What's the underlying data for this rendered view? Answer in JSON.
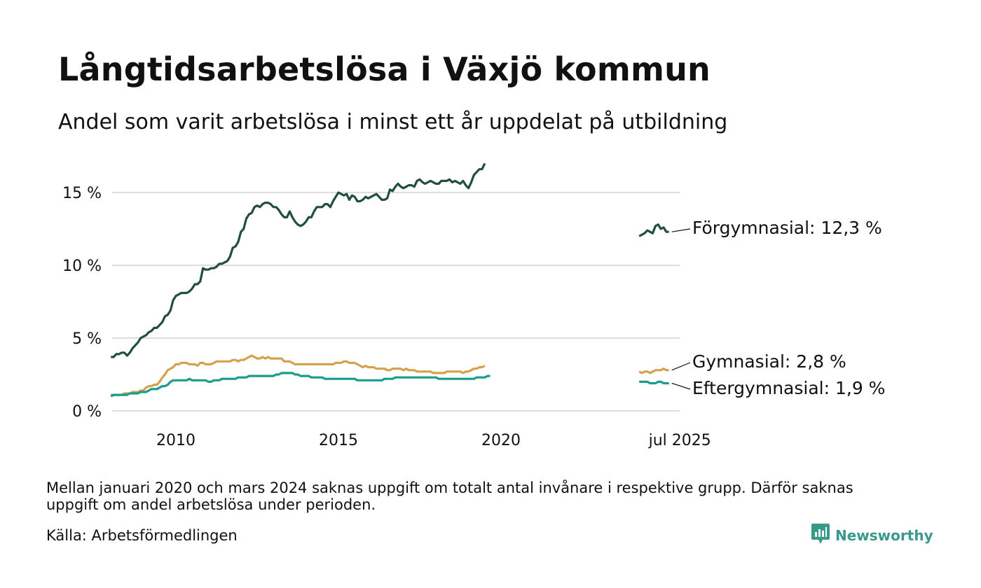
{
  "title": "Långtidsarbetslösa i Växjö kommun",
  "subtitle": "Andel som varit arbetslösa i minst ett år uppdelat på utbildning",
  "footnote": "Mellan januari 2020 och mars 2024 saknas uppgift om totalt antal invånare i respektive grupp. Därför saknas uppgift om andel arbetslösa under perioden.",
  "source": "Källa: Arbetsförmedlingen",
  "brand": {
    "name": "Newsworthy",
    "icon": "newsworthy-logo-icon"
  },
  "colors": {
    "forgymnasial": "#224d44",
    "gymnasial": "#d4a24c",
    "eftergymnasial": "#189c8c",
    "grid": "#dddddd"
  },
  "chart_data": {
    "type": "line",
    "y_ticks": [
      "0 %",
      "5 %",
      "10 %",
      "15 %"
    ],
    "y_tick_values": [
      0,
      5,
      10,
      15
    ],
    "ylim": [
      0,
      17
    ],
    "x_ticks": [
      "2010",
      "2015",
      "2020",
      "jul 2025"
    ],
    "x_tick_values": [
      "2010-01",
      "2015-01",
      "2020-01",
      "2025-07"
    ],
    "grid": "horizontal",
    "series": [
      {
        "key": "forgymnasial",
        "end_label": "Förgymnasial: 12,3 %",
        "segments": [
          {
            "start": "2008-01",
            "values": [
              3.7,
              3.7,
              3.9,
              3.9,
              4.0,
              4.0,
              3.8,
              4.0,
              4.3,
              4.5,
              4.7,
              5.0,
              5.1,
              5.2,
              5.4,
              5.5,
              5.7,
              5.7,
              5.9,
              6.1,
              6.5,
              6.6,
              6.9,
              7.6,
              7.9,
              8.0,
              8.1,
              8.1,
              8.1,
              8.2,
              8.4,
              8.7,
              8.7,
              8.9,
              9.8,
              9.7,
              9.7,
              9.8,
              9.8,
              9.9,
              10.1,
              10.1,
              10.2,
              10.3,
              10.6,
              11.2,
              11.3,
              11.6,
              12.3,
              12.5,
              13.2,
              13.5,
              13.6,
              14.0,
              14.1,
              14.0,
              14.2,
              14.3,
              14.3,
              14.2,
              14.0,
              14.0,
              13.8,
              13.5,
              13.3,
              13.3,
              13.7,
              13.3,
              13.0,
              12.8,
              12.7,
              12.8,
              13.0,
              13.3,
              13.3,
              13.7,
              14.0,
              14.0,
              14.0,
              14.2,
              14.2,
              14.0,
              14.4,
              14.7,
              15.0,
              14.9,
              14.8,
              14.9,
              14.5,
              14.8,
              14.7,
              14.4,
              14.4,
              14.5,
              14.7,
              14.6,
              14.7,
              14.8,
              14.9,
              14.7,
              14.5,
              14.5,
              14.6,
              15.2,
              15.1,
              15.4,
              15.6,
              15.4,
              15.3,
              15.4,
              15.5,
              15.5,
              15.4,
              15.8,
              15.9,
              15.7,
              15.6,
              15.7,
              15.8,
              15.7,
              15.6,
              15.6,
              15.8,
              15.8,
              15.8,
              15.9,
              15.7,
              15.8,
              15.7,
              15.6,
              15.8,
              15.5,
              15.3,
              15.7,
              16.2,
              16.4,
              16.6,
              16.6,
              17.0
            ]
          },
          {
            "start": "2024-04",
            "values": [
              12.0,
              12.1,
              12.2,
              12.4,
              12.3,
              12.2,
              12.7,
              12.8,
              12.5,
              12.6,
              12.3,
              12.3
            ]
          }
        ]
      },
      {
        "key": "gymnasial",
        "end_label": "Gymnasial:  2,8 %",
        "segments": [
          {
            "start": "2008-01",
            "values": [
              1.1,
              1.1,
              1.1,
              1.1,
              1.1,
              1.2,
              1.2,
              1.2,
              1.3,
              1.3,
              1.3,
              1.4,
              1.4,
              1.6,
              1.7,
              1.7,
              1.8,
              1.8,
              2.0,
              2.3,
              2.5,
              2.8,
              2.9,
              3.0,
              3.2,
              3.2,
              3.3,
              3.3,
              3.3,
              3.2,
              3.2,
              3.2,
              3.1,
              3.3,
              3.3,
              3.2,
              3.2,
              3.2,
              3.3,
              3.4,
              3.4,
              3.4,
              3.4,
              3.4,
              3.4,
              3.5,
              3.5,
              3.4,
              3.5,
              3.5,
              3.6,
              3.7,
              3.8,
              3.7,
              3.6,
              3.6,
              3.7,
              3.6,
              3.7,
              3.6,
              3.6,
              3.6,
              3.6,
              3.6,
              3.4,
              3.4,
              3.4,
              3.3,
              3.2,
              3.2,
              3.2,
              3.2,
              3.2,
              3.2,
              3.2,
              3.2,
              3.2,
              3.2,
              3.2,
              3.2,
              3.2,
              3.2,
              3.2,
              3.3,
              3.3,
              3.3,
              3.4,
              3.4,
              3.3,
              3.3,
              3.3,
              3.2,
              3.1,
              3.0,
              3.1,
              3.0,
              3.0,
              3.0,
              2.9,
              2.9,
              2.9,
              2.9,
              2.8,
              2.8,
              2.9,
              2.9,
              2.9,
              2.9,
              2.8,
              2.9,
              2.8,
              2.8,
              2.8,
              2.7,
              2.7,
              2.7,
              2.7,
              2.7,
              2.7,
              2.6,
              2.6,
              2.6,
              2.6,
              2.6,
              2.7,
              2.7,
              2.7,
              2.7,
              2.7,
              2.7,
              2.6,
              2.7,
              2.7,
              2.8,
              2.9,
              2.9,
              3.0,
              3.0,
              3.1
            ]
          },
          {
            "start": "2024-04",
            "values": [
              2.7,
              2.6,
              2.7,
              2.7,
              2.6,
              2.7,
              2.8,
              2.8,
              2.8,
              2.9,
              2.8,
              2.8
            ]
          }
        ]
      },
      {
        "key": "eftergymnasial",
        "end_label": "Eftergymnasial:  1,9 %",
        "segments": [
          {
            "start": "2008-01",
            "values": [
              1.0,
              1.1,
              1.1,
              1.1,
              1.1,
              1.1,
              1.1,
              1.2,
              1.2,
              1.2,
              1.2,
              1.3,
              1.3,
              1.3,
              1.4,
              1.5,
              1.5,
              1.5,
              1.6,
              1.7,
              1.7,
              1.8,
              2.0,
              2.1,
              2.1,
              2.1,
              2.1,
              2.1,
              2.1,
              2.2,
              2.1,
              2.1,
              2.1,
              2.1,
              2.1,
              2.1,
              2.0,
              2.0,
              2.1,
              2.1,
              2.1,
              2.2,
              2.2,
              2.2,
              2.2,
              2.2,
              2.2,
              2.3,
              2.3,
              2.3,
              2.3,
              2.4,
              2.4,
              2.4,
              2.4,
              2.4,
              2.4,
              2.4,
              2.4,
              2.4,
              2.4,
              2.5,
              2.5,
              2.6,
              2.6,
              2.6,
              2.6,
              2.6,
              2.5,
              2.5,
              2.4,
              2.4,
              2.4,
              2.4,
              2.3,
              2.3,
              2.3,
              2.3,
              2.3,
              2.2,
              2.2,
              2.2,
              2.2,
              2.2,
              2.2,
              2.2,
              2.2,
              2.2,
              2.2,
              2.2,
              2.2,
              2.1,
              2.1,
              2.1,
              2.1,
              2.1,
              2.1,
              2.1,
              2.1,
              2.1,
              2.1,
              2.2,
              2.2,
              2.2,
              2.2,
              2.3,
              2.3,
              2.3,
              2.3,
              2.3,
              2.3,
              2.3,
              2.3,
              2.3,
              2.3,
              2.3,
              2.3,
              2.3,
              2.3,
              2.3,
              2.3,
              2.2,
              2.2,
              2.2,
              2.2,
              2.2,
              2.2,
              2.2,
              2.2,
              2.2,
              2.2,
              2.2,
              2.2,
              2.2,
              2.2,
              2.3,
              2.3,
              2.3,
              2.3,
              2.4,
              2.4
            ]
          },
          {
            "start": "2024-04",
            "values": [
              2.0,
              2.0,
              2.0,
              2.0,
              1.9,
              1.9,
              1.9,
              2.0,
              2.0,
              1.9,
              1.9,
              1.9
            ]
          }
        ]
      }
    ]
  }
}
